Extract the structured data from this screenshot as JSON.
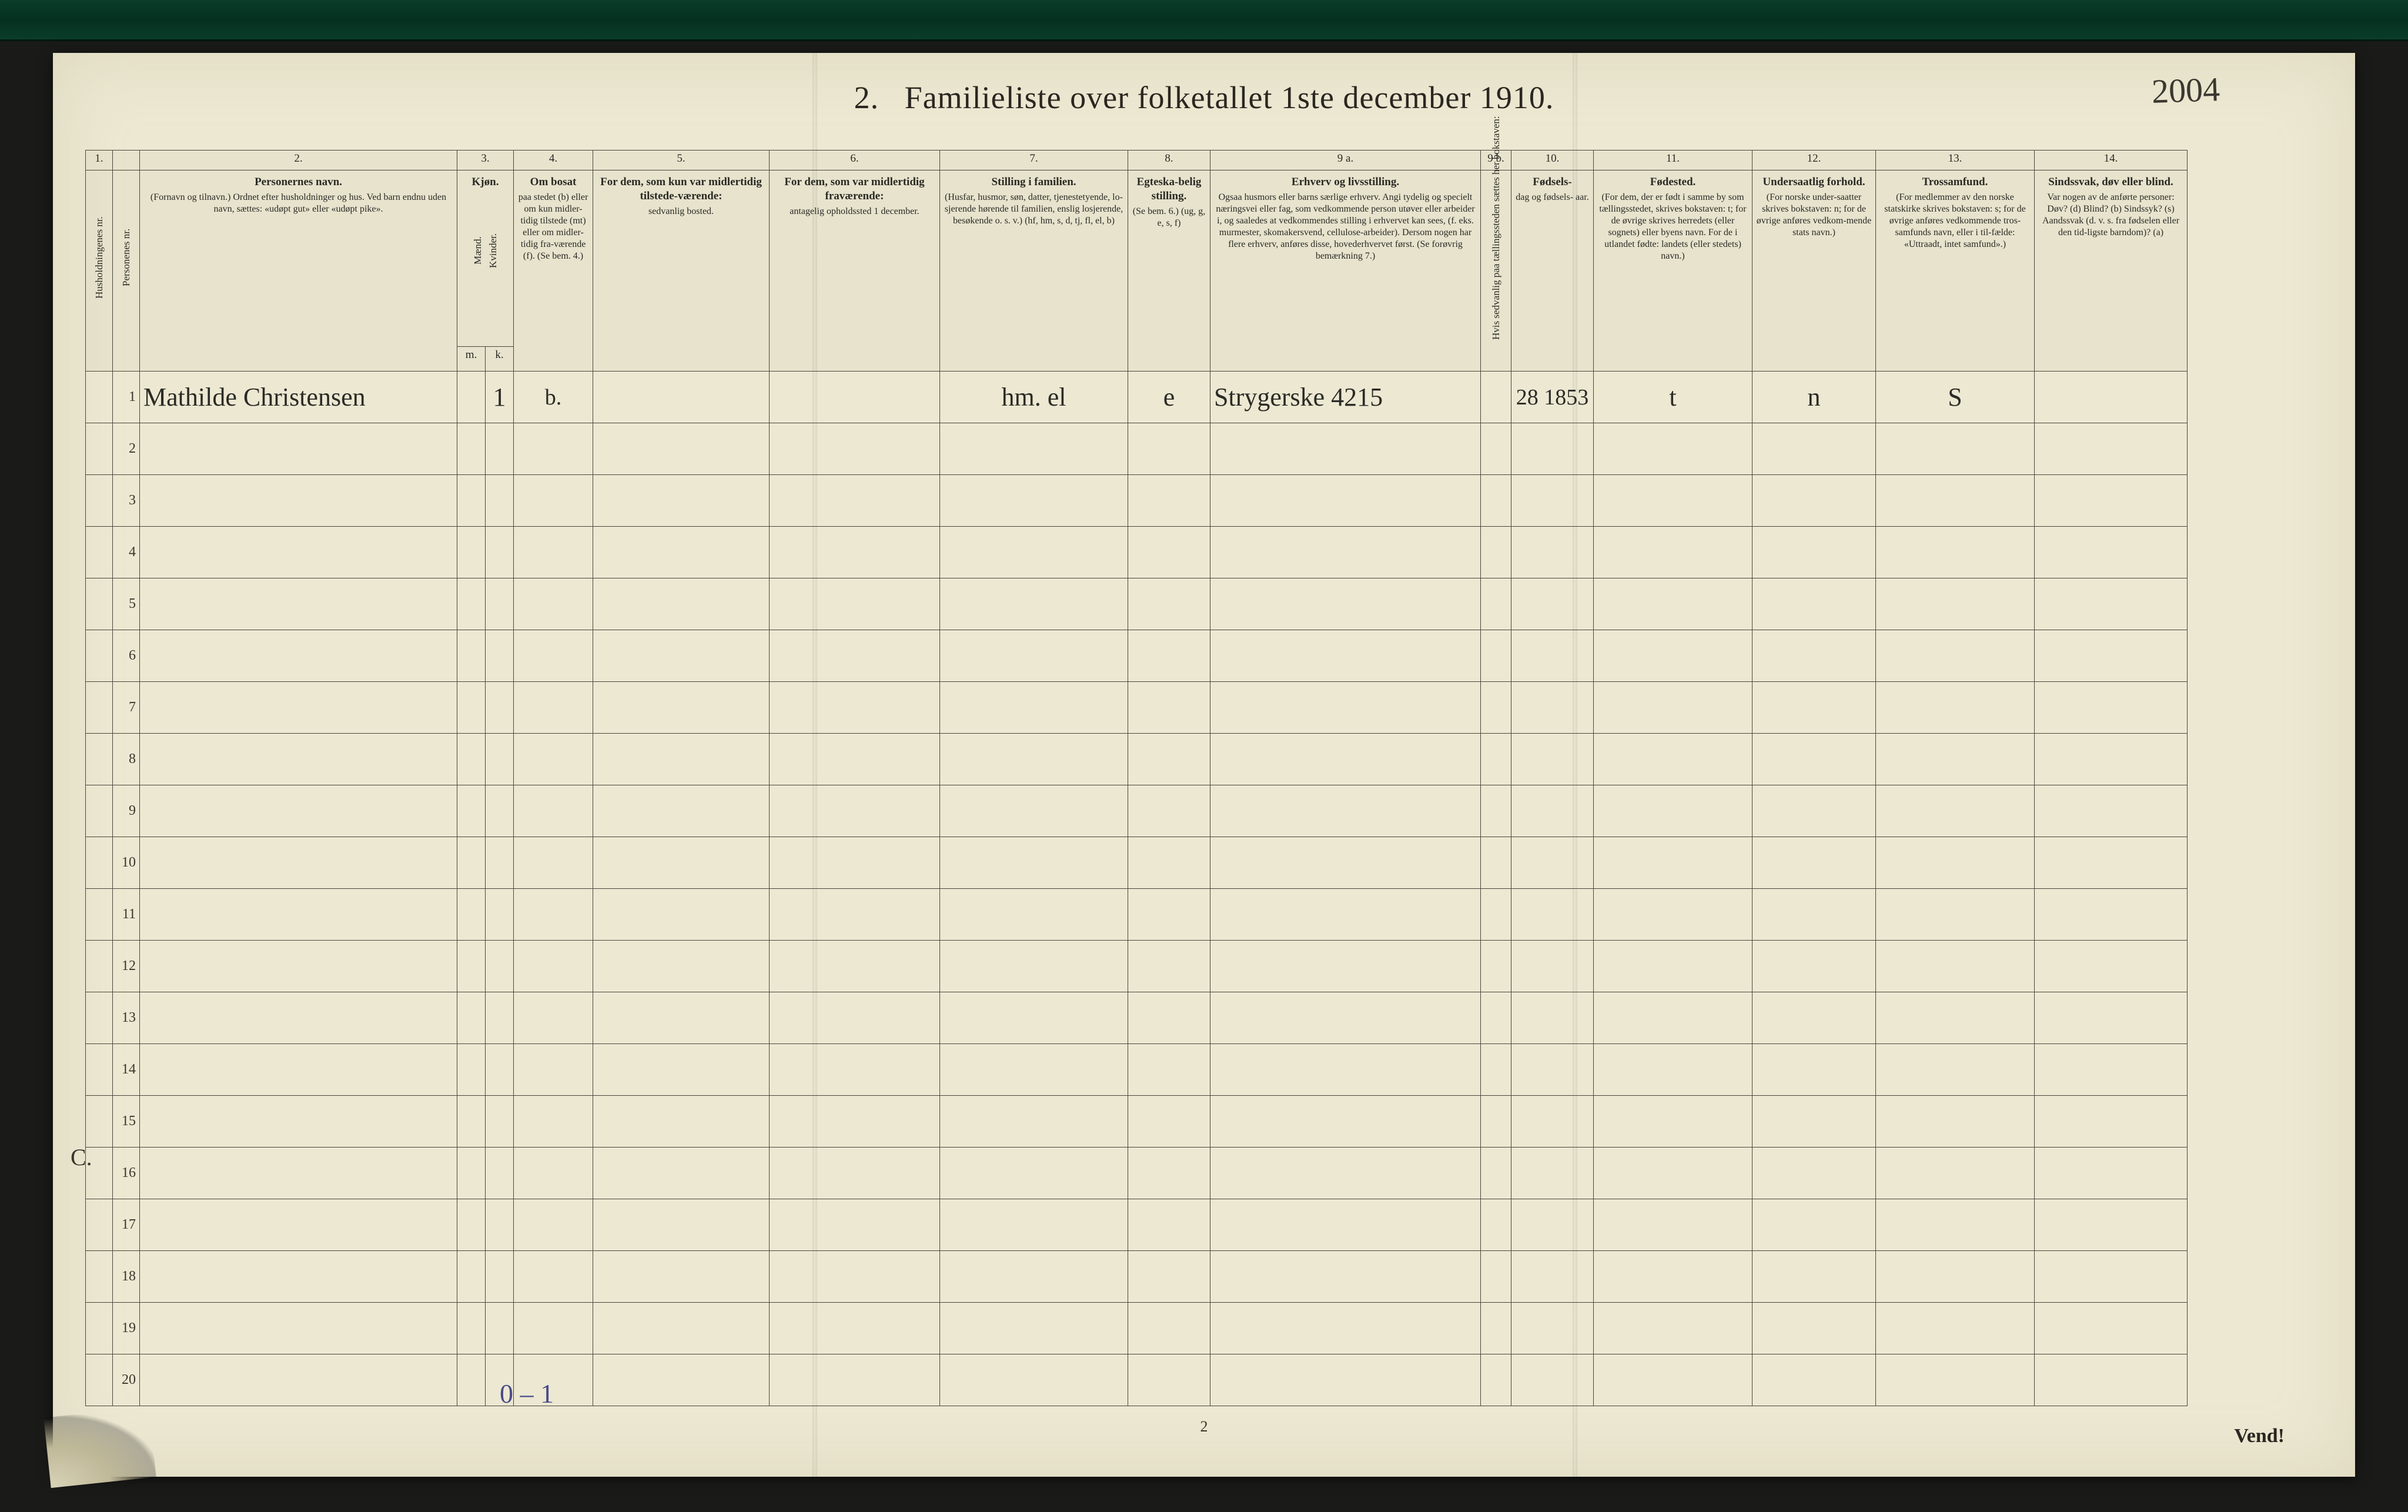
{
  "title": {
    "num": "2.",
    "text": "Familieliste over folketallet 1ste december 1910."
  },
  "top_handwriting": "2004",
  "page_number": "2",
  "vend": "Vend!",
  "bottom_handwriting": "0 – 1",
  "stray_mark": "C.",
  "colors": {
    "paper": "#ece8d2",
    "ink": "#2a2620",
    "rule": "#4a463c",
    "hand_ink": "#2b2b26",
    "blue_pencil": "#4a4a8a",
    "bg": "#1a1a18",
    "green_bar": "#0a3d2a"
  },
  "typography": {
    "title_fontsize_pt": 40,
    "header_fontsize_pt": 14,
    "hand_fontsize_pt": 32
  },
  "column_numbers": [
    "1.",
    "",
    "2.",
    "3.",
    "",
    "4.",
    "5.",
    "6.",
    "7.",
    "8.",
    "9 a.",
    "9 b.",
    "10.",
    "11.",
    "12.",
    "13.",
    "14."
  ],
  "headers": {
    "c1": "Husholdningenes nr.",
    "c1b": "Personenes nr.",
    "c2": {
      "strong": "Personernes navn.",
      "small": "(Fornavn og tilnavn.)\nOrdnet efter husholdninger og hus.\nVed barn endnu uden navn, sættes: «udøpt gut» eller «udøpt pike»."
    },
    "c3": {
      "strong": "Kjøn.",
      "sub": [
        "Mænd.",
        "Kvinder."
      ],
      "short": [
        "m.",
        "k."
      ]
    },
    "c4": {
      "strong": "Om bosat",
      "small": "paa stedet (b) eller om kun midler-tidig tilstede (mt) eller om midler-tidig fra-værende (f). (Se bem. 4.)"
    },
    "c5": {
      "strong": "For dem, som kun var midlertidig tilstede-værende:",
      "small": "sedvanlig bosted."
    },
    "c6": {
      "strong": "For dem, som var midlertidig fraværende:",
      "small": "antagelig opholdssted 1 december."
    },
    "c7": {
      "strong": "Stilling i familien.",
      "small": "(Husfar, husmor, søn, datter, tjenestetyende, lo-sjerende hørende til familien, enslig losjerende, besøkende o. s. v.)\n(hf, hm, s, d, tj, fl, el, b)"
    },
    "c8": {
      "strong": "Egteska-belig stilling.",
      "small": "(Se bem. 6.)\n(ug, g, e, s, f)"
    },
    "c9a": {
      "strong": "Erhverv og livsstilling.",
      "small": "Ogsaa husmors eller barns særlige erhverv. Angi tydelig og specielt næringsvei eller fag, som vedkommende person utøver eller arbeider i, og saaledes at vedkommendes stilling i erhvervet kan sees, (f. eks. murmester, skomakersvend, cellulose-arbeider). Dersom nogen har flere erhverv, anføres disse, hovederhvervet først.\n(Se forøvrig bemærkning 7.)"
    },
    "c9b": "Hvis sedvanlig paa tællingssteden sættes her bokstaven:",
    "c10": {
      "strong": "Fødsels-",
      "small": "dag\nog\nfødsels-\naar."
    },
    "c11": {
      "strong": "Fødested.",
      "small": "(For dem, der er født i samme by som tællingsstedet, skrives bokstaven: t; for de øvrige skrives herredets (eller sognets) eller byens navn. For de i utlandet fødte: landets (eller stedets) navn.)"
    },
    "c12": {
      "strong": "Undersaatlig forhold.",
      "small": "(For norske under-saatter skrives bokstaven: n; for de øvrige anføres vedkom-mende stats navn.)"
    },
    "c13": {
      "strong": "Trossamfund.",
      "small": "(For medlemmer av den norske statskirke skrives bokstaven: s; for de øvrige anføres vedkommende tros-samfunds navn, eller i til-fælde: «Uttraadt, intet samfund».)"
    },
    "c14": {
      "strong": "Sindssvak, døv eller blind.",
      "small": "Var nogen av de anførte personer:\nDøv?        (d)\nBlind?      (b)\nSindssyk?   (s)\nAandssvak (d. v. s. fra fødselen eller den tid-ligste barndom)? (a)"
    }
  },
  "rows": [
    {
      "n": "1",
      "name": "Mathilde Christensen",
      "m": "",
      "k": "1",
      "c4": "b.",
      "c5": "",
      "c6": "",
      "c7": "hm. el",
      "c8": "e",
      "c9a": "Strygerske  4215",
      "c9b": "",
      "c10": "28 1853",
      "c11": "t",
      "c12": "n",
      "c13": "S",
      "c14": ""
    },
    {
      "n": "2"
    },
    {
      "n": "3"
    },
    {
      "n": "4"
    },
    {
      "n": "5"
    },
    {
      "n": "6"
    },
    {
      "n": "7"
    },
    {
      "n": "8"
    },
    {
      "n": "9"
    },
    {
      "n": "10"
    },
    {
      "n": "11"
    },
    {
      "n": "12"
    },
    {
      "n": "13"
    },
    {
      "n": "14"
    },
    {
      "n": "15"
    },
    {
      "n": "16"
    },
    {
      "n": "17"
    },
    {
      "n": "18"
    },
    {
      "n": "19"
    },
    {
      "n": "20"
    }
  ]
}
